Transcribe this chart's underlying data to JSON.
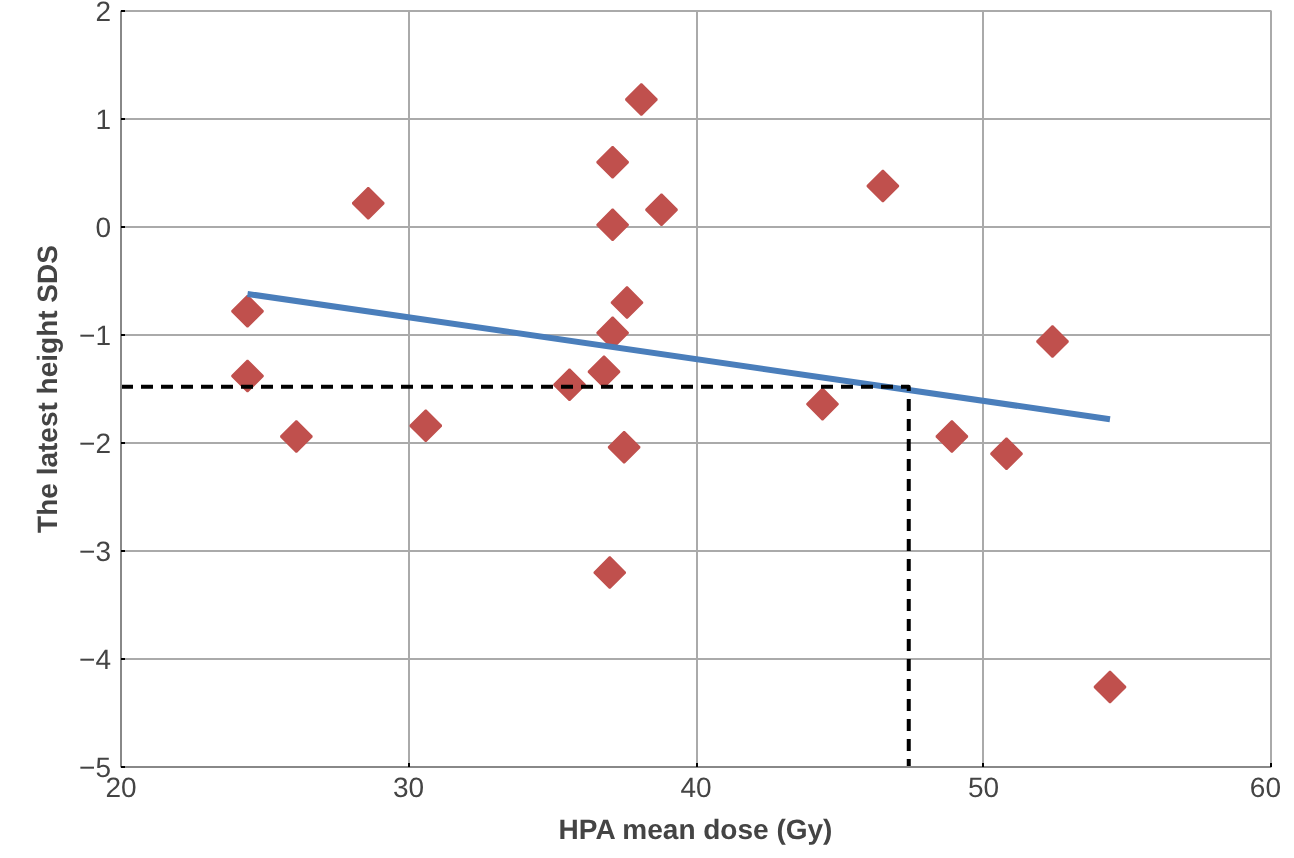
{
  "chart_data": {
    "type": "scatter",
    "xlabel": "HPA mean dose (Gy)",
    "ylabel": "The latest height SDS",
    "xlim": [
      20,
      60
    ],
    "ylim": [
      -5,
      2
    ],
    "xticks": [
      20,
      30,
      40,
      50,
      60
    ],
    "yticks": [
      -5,
      -4,
      -3,
      -2,
      -1,
      0,
      1,
      2
    ],
    "grid": true,
    "series": [
      {
        "marker": "diamond",
        "color": "#c0504d",
        "x": [
          24.4,
          24.4,
          26.1,
          28.6,
          30.6,
          35.6,
          36.8,
          37.1,
          37.1,
          37.1,
          37.6,
          37.5,
          37.0,
          38.1,
          38.8,
          44.4,
          46.5,
          48.9,
          50.8,
          52.4,
          54.4
        ],
        "values": [
          -0.78,
          -1.38,
          -1.94,
          0.22,
          -1.84,
          -1.46,
          -1.34,
          0.6,
          0.02,
          -0.98,
          -0.7,
          -2.04,
          -3.2,
          1.18,
          0.16,
          -1.64,
          0.38,
          -1.94,
          -2.1,
          -1.06,
          -4.26
        ]
      },
      {
        "type": "line",
        "marker": "none",
        "line_style": "solid",
        "color": "#4a7ebb",
        "x": [
          24.4,
          54.4
        ],
        "values": [
          -0.62,
          -1.78
        ]
      },
      {
        "type": "line",
        "marker": "none",
        "line_style": "dashed",
        "color": "#000000",
        "x": [
          20,
          47.4,
          47.4
        ],
        "values": [
          -1.48,
          -1.48,
          -5
        ]
      }
    ]
  }
}
